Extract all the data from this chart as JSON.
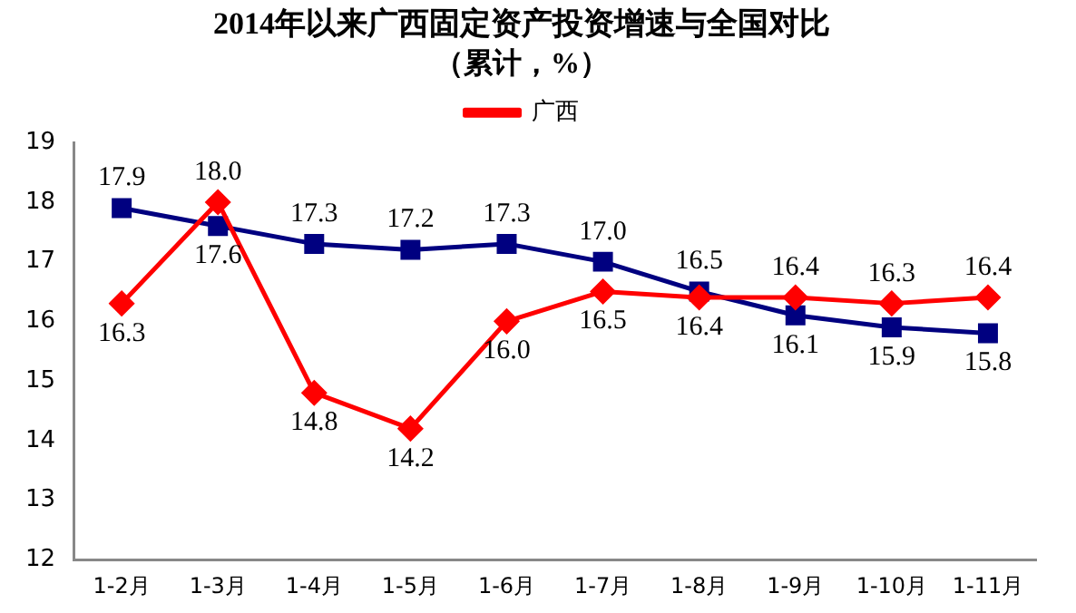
{
  "chart_data": {
    "type": "line",
    "title": "2014年以来广西固定资产投资增速与全国对比",
    "subtitle": "（累计，%）",
    "categories": [
      "1-2月",
      "1-3月",
      "1-4月",
      "1-5月",
      "1-6月",
      "1-7月",
      "1-8月",
      "1-9月",
      "1-10月",
      "1-11月"
    ],
    "series": [
      {
        "name": "广西",
        "color": "#ff0000",
        "marker": "diamond",
        "values": [
          16.3,
          18.0,
          14.8,
          14.2,
          16.0,
          16.5,
          16.4,
          16.4,
          16.3,
          16.4
        ],
        "value_labels": [
          "16.3",
          "18.0",
          "14.8",
          "14.2",
          "16.0",
          "16.5",
          "16.4",
          "16.4",
          "16.3",
          "16.4"
        ]
      },
      {
        "color": "#000080",
        "marker": "square",
        "values": [
          17.9,
          17.6,
          17.3,
          17.2,
          17.3,
          17.0,
          16.5,
          16.1,
          15.9,
          15.8
        ],
        "value_labels": [
          "17.9",
          "17.6",
          "17.3",
          "17.2",
          "17.3",
          "17.0",
          "16.5",
          "16.1",
          "15.9",
          "15.8"
        ]
      }
    ],
    "ylim": [
      12,
      19
    ],
    "yticks": [
      12,
      13,
      14,
      15,
      16,
      17,
      18,
      19
    ],
    "grid": false,
    "legend": "top",
    "line_style": "solid"
  }
}
